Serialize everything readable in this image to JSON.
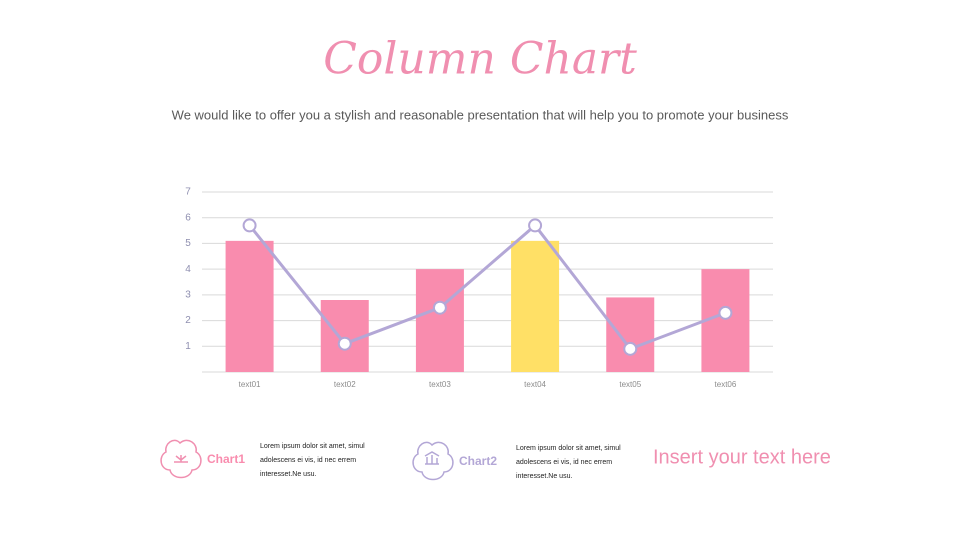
{
  "chart_data": {
    "type": "bar",
    "title": "Column Chart",
    "subtitle": "We would like to offer you a stylish and reasonable presentation that will help you to promote your business",
    "annotation": "Insert your text here",
    "categories": [
      "text01",
      "text02",
      "text03",
      "text04",
      "text05",
      "text06"
    ],
    "series": [
      {
        "name": "Chart1",
        "type": "bar",
        "color": "#f98cae",
        "colors": [
          "#f98cae",
          "#f98cae",
          "#f98cae",
          "#ffe066",
          "#f98cae",
          "#f98cae"
        ],
        "values": [
          5.1,
          2.8,
          4,
          5.1,
          2.9,
          4
        ],
        "description": [
          "Lorem ipsum dolor sit amet, simul",
          "adolescens ei vis, id nec errem",
          "interesset.Ne usu."
        ]
      },
      {
        "name": "Chart2",
        "type": "line",
        "color": "#b3a7d6",
        "values": [
          5.7,
          1.1,
          2.5,
          5.7,
          0.9,
          2.3
        ],
        "description": [
          "Lorem ipsum dolor sit amet, simul",
          "adolescens ei vis, id nec errem",
          "interesset.Ne usu."
        ]
      }
    ],
    "ylim": [
      0,
      7
    ],
    "yticks": [
      1,
      2,
      3,
      4,
      5,
      6,
      7
    ],
    "grid": true
  }
}
